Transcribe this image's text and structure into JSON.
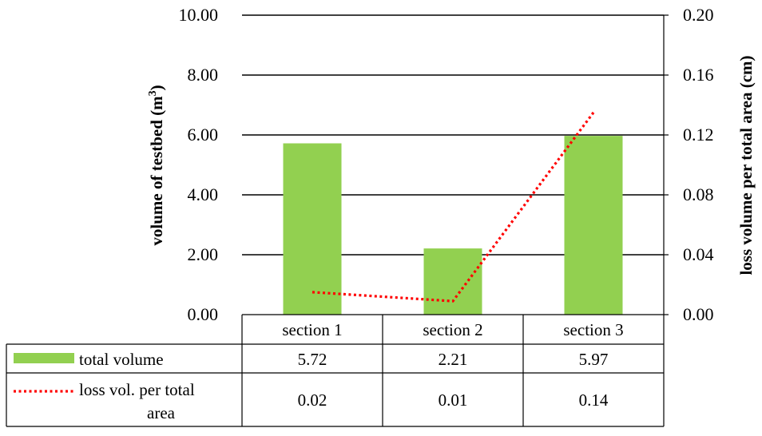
{
  "chart_data": {
    "type": "bar",
    "categories": [
      "section 1",
      "section 2",
      "section 3"
    ],
    "series": [
      {
        "name": "total volume",
        "type": "bar",
        "axis": "left",
        "color": "#92d050",
        "values": [
          5.72,
          2.21,
          5.97
        ],
        "table_labels": [
          "5.72",
          "2.21",
          "5.97"
        ]
      },
      {
        "name": "loss vol. per total area",
        "type": "line",
        "axis": "right",
        "color": "#ff0000",
        "style": "dotted",
        "values": [
          0.015,
          0.009,
          0.135
        ],
        "table_labels": [
          "0.02",
          "0.01",
          "0.14"
        ]
      }
    ],
    "y_left": {
      "label_main": "volume of testbed (m",
      "label_sup": "3",
      "label_end": ")",
      "ylim": [
        0,
        10
      ],
      "ticks": [
        "0.00",
        "2.00",
        "4.00",
        "6.00",
        "8.00",
        "10.00"
      ]
    },
    "y_right": {
      "label": "loss volume per total area (cm)",
      "ylim": [
        0,
        0.2
      ],
      "ticks": [
        "0.00",
        "0.04",
        "0.08",
        "0.12",
        "0.16",
        "0.20"
      ]
    },
    "grid": true,
    "legend": "data-table"
  }
}
